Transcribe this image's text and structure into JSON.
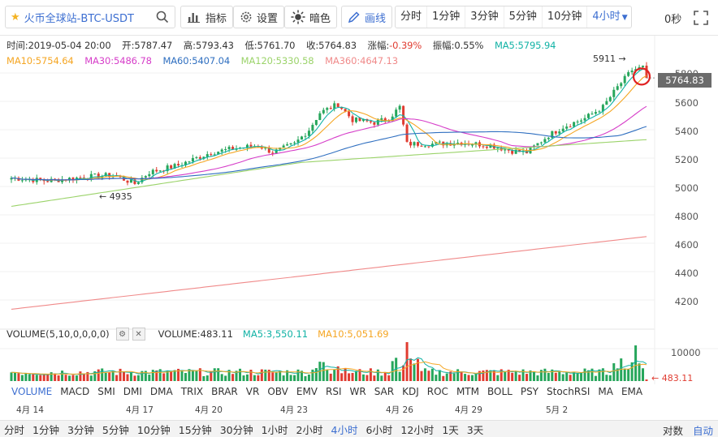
{
  "toolbar": {
    "symbol": "火币全球站-BTC-USDT",
    "indicator_label": "指标",
    "settings_label": "设置",
    "theme_label": "暗色",
    "draw_label": "画线",
    "periods": [
      "分时",
      "1分钟",
      "3分钟",
      "5分钟",
      "10分钟",
      "4小时"
    ],
    "active_period": "4小时",
    "seconds": "0秒"
  },
  "info": {
    "time": "时间:2019-05-04 20:00",
    "open": "开:5787.47",
    "high": "高:5793.43",
    "low": "低:5761.70",
    "close": "收:5764.83",
    "change_label": "涨幅:",
    "change_value": "-0.39%",
    "amplitude": "振幅:0.55%",
    "ma5": "MA5:5795.94",
    "ma10": "MA10:5754.64",
    "ma30": "MA30:5486.78",
    "ma60": "MA60:5407.04",
    "ma120": "MA120:5330.58",
    "ma360": "MA360:4647.13"
  },
  "chart_data": {
    "type": "candlestick",
    "price_axis_ticks": [
      "5800",
      "5600",
      "5400",
      "5200",
      "5000",
      "4800",
      "4600",
      "4400",
      "4200"
    ],
    "last_price": "5764.83",
    "max_marker": "5911",
    "min_marker": "4935",
    "volume_axis_tick": "10000",
    "volume_last": "483.11",
    "date_ticks": [
      "4月 14",
      "4月 17",
      "4月 20",
      "4月 23",
      "4月 26",
      "4月 29",
      "5月 2"
    ],
    "ma_colors": {
      "ma5": "#11b2a5",
      "ma10": "#f5a623",
      "ma30": "#d63ec9",
      "ma60": "#2f6fc0",
      "ma120": "#9bd36a",
      "ma360": "#f08a8a"
    },
    "up_color": "#26a65b",
    "down_color": "#e03c31"
  },
  "volume": {
    "name": "VOLUME(5,10,0,0,0,0)",
    "value": "VOLUME:483.11",
    "ma5": "MA5:3,550.11",
    "ma10": "MA10:5,051.69"
  },
  "indicators": [
    "VOLUME",
    "MACD",
    "SMI",
    "DMI",
    "DMA",
    "TRIX",
    "BRAR",
    "VR",
    "OBV",
    "EMV",
    "RSI",
    "WR",
    "SAR",
    "KDJ",
    "ROC",
    "MTM",
    "BOLL",
    "PSY",
    "StochRSI",
    "MA",
    "EMA"
  ],
  "bottom_periods": [
    "分时",
    "1分钟",
    "3分钟",
    "5分钟",
    "10分钟",
    "15分钟",
    "30分钟",
    "1小时",
    "2小时",
    "4小时",
    "6小时",
    "12小时",
    "1天",
    "3天"
  ],
  "bottom_active": "4小时",
  "bottom_right": {
    "log": "对数",
    "auto": "自动"
  }
}
